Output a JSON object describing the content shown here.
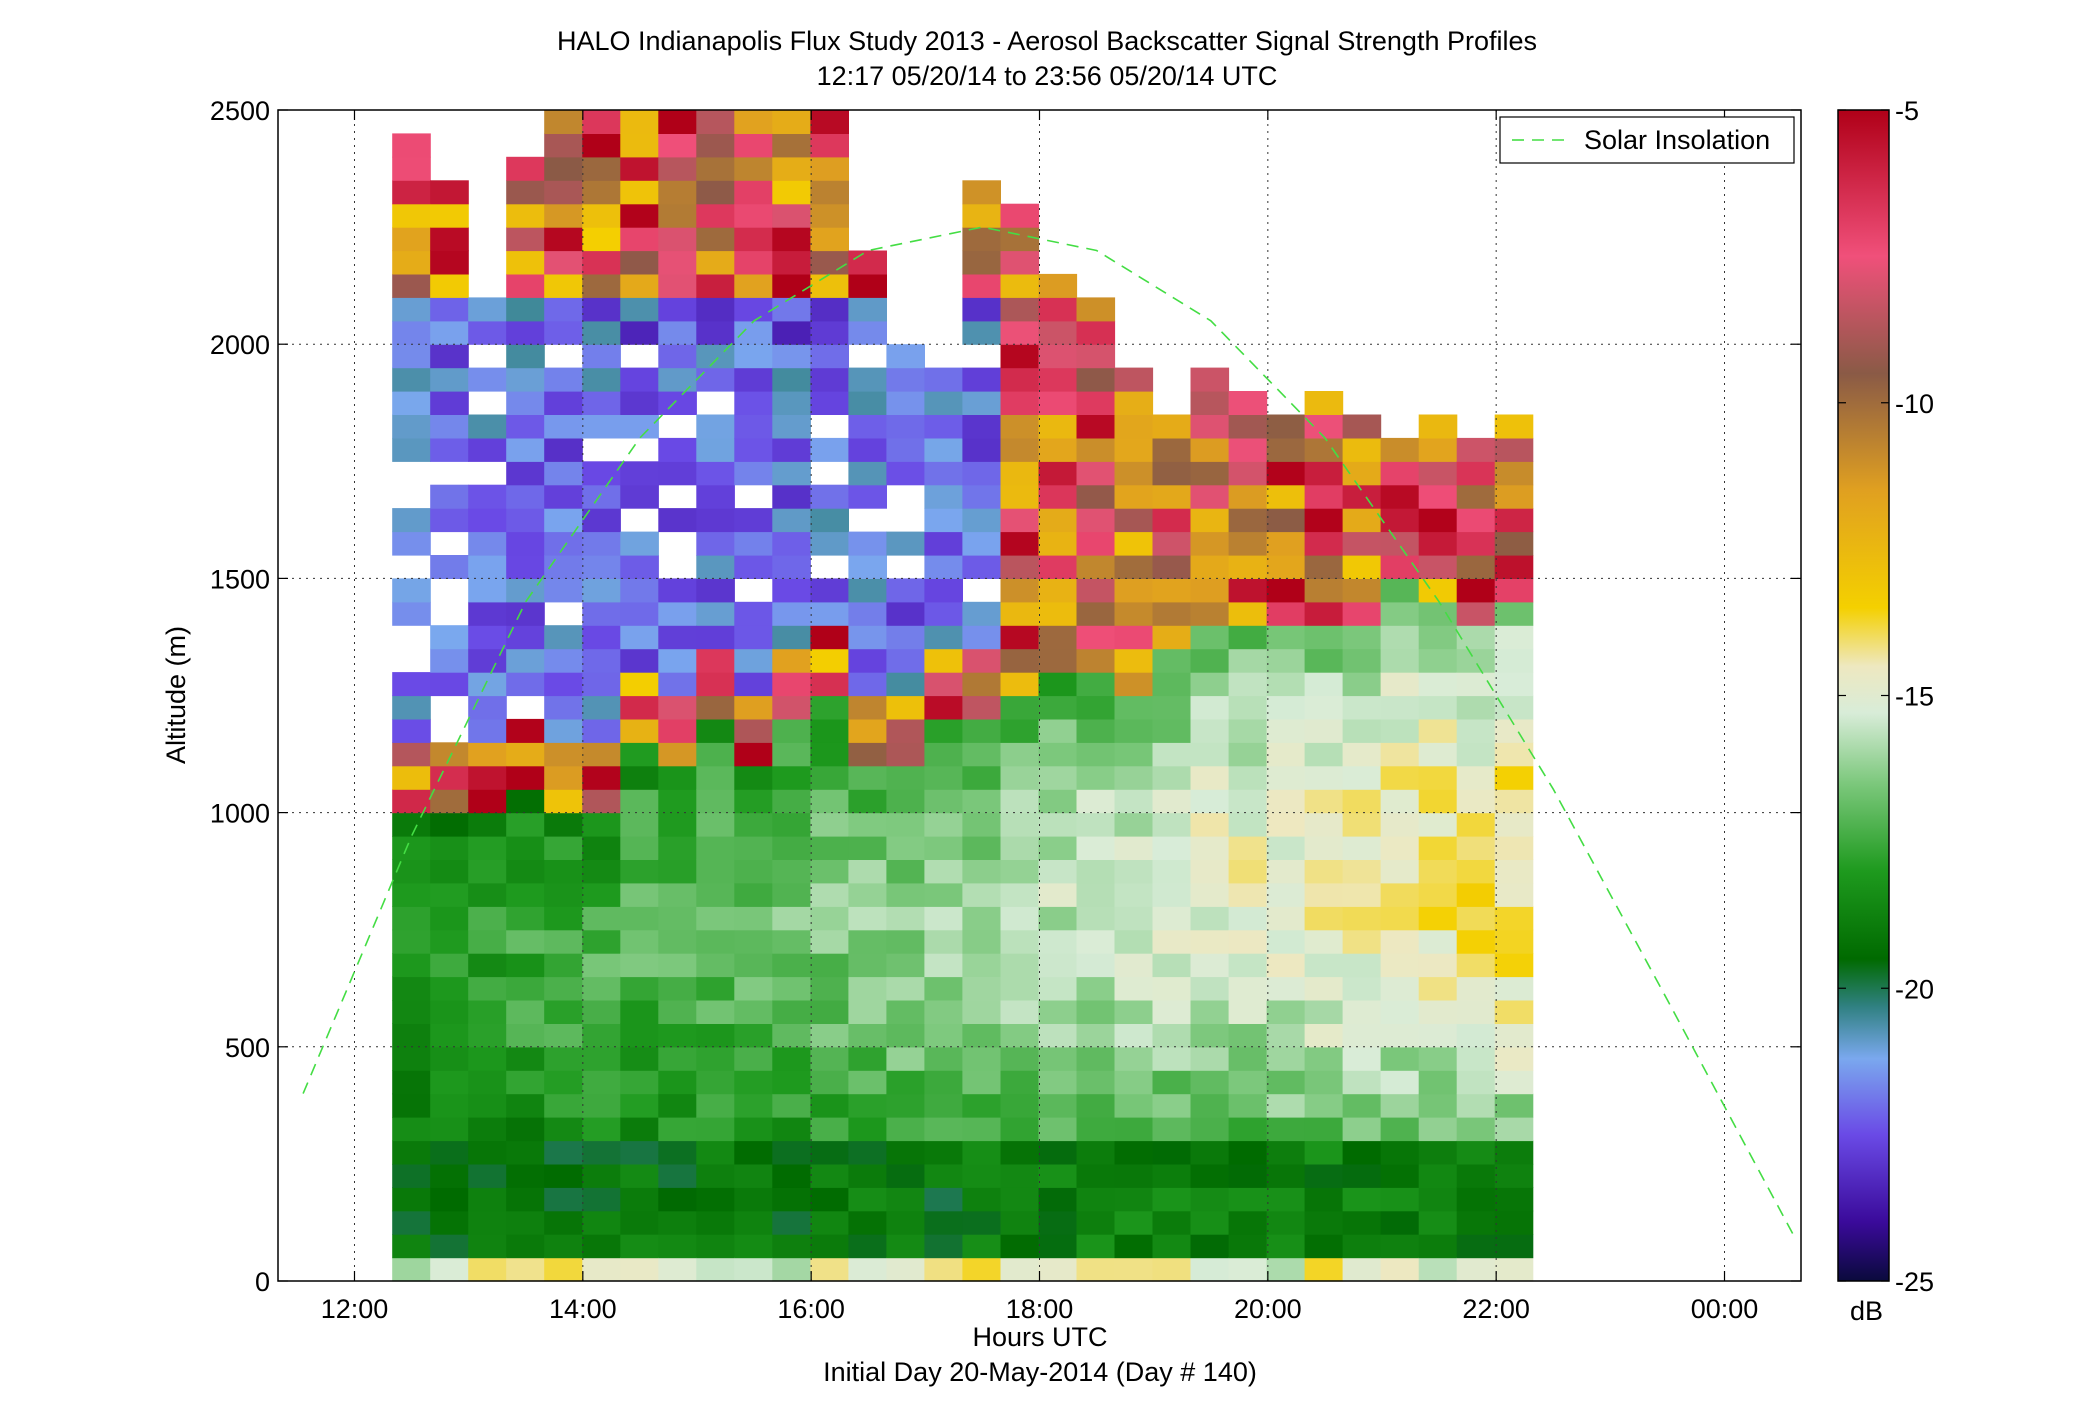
{
  "chart_data": {
    "type": "heatmap",
    "title": "HALO Indianapolis Flux Study 2013 - Aerosol Backscatter Signal Strength Profiles",
    "subtitle": "12:17 05/20/14 to 23:56 05/20/14  UTC",
    "xlabel": "Hours UTC",
    "xlabel2": "Initial Day 20-May-2014 (Day # 140)",
    "ylabel": "Altitude (m)",
    "x_ticks": [
      "12:00",
      "14:00",
      "16:00",
      "18:00",
      "20:00",
      "22:00",
      "00:00"
    ],
    "x_tick_values": [
      12,
      14,
      16,
      18,
      20,
      22,
      24
    ],
    "xlim": [
      11.33,
      24.67
    ],
    "y_ticks": [
      "0",
      "500",
      "1000",
      "1500",
      "2000",
      "2500"
    ],
    "y_tick_values": [
      0,
      500,
      1000,
      1500,
      2000,
      2500
    ],
    "ylim": [
      0,
      2500
    ],
    "grid": true,
    "legend": {
      "entries": [
        "Solar Insolation"
      ],
      "placement": "top-right"
    },
    "colorbar": {
      "label": "dB",
      "ticks": [
        "-5",
        "-10",
        "-15",
        "-20",
        "-25"
      ],
      "tick_values": [
        -5,
        -10,
        -15,
        -20,
        -25
      ],
      "range": [
        -25,
        -5
      ]
    },
    "series": [
      {
        "name": "Solar Insolation",
        "style": "dashed",
        "color": "#44dd44",
        "x": [
          11.55,
          12.5,
          13.5,
          14.5,
          15.5,
          16.5,
          17.5,
          18.5,
          19.5,
          20.5,
          21.5,
          22.5,
          23.5,
          24.6
        ],
        "y": [
          400,
          950,
          1450,
          1800,
          2050,
          2200,
          2250,
          2200,
          2050,
          1800,
          1450,
          1050,
          600,
          100
        ]
      }
    ],
    "heatmap": {
      "x_start": 12.33,
      "x_step": 0.333,
      "columns": 30,
      "y_step": 50,
      "rows": 50,
      "column_tops_m": [
        2450,
        2350,
        2100,
        2400,
        2500,
        2500,
        2500,
        2500,
        2500,
        2500,
        2500,
        2500,
        2200,
        2000,
        1950,
        2350,
        2300,
        2150,
        2100,
        1950,
        1850,
        1950,
        1900,
        1850,
        1900,
        1850,
        1800,
        1850,
        1800,
        1850
      ],
      "colormap": [
        {
          "db": -25,
          "color": "#0a0a3c"
        },
        {
          "db": -24,
          "color": "#3a0a9a"
        },
        {
          "db": -22.5,
          "color": "#6a4ae6"
        },
        {
          "db": -21.2,
          "color": "#7aa8ee"
        },
        {
          "db": -20.3,
          "color": "#2f8080"
        },
        {
          "db": -19.5,
          "color": "#006a00"
        },
        {
          "db": -18,
          "color": "#1e9a1e"
        },
        {
          "db": -16.5,
          "color": "#7cc87c"
        },
        {
          "db": -15.3,
          "color": "#d8ecd8"
        },
        {
          "db": -14.5,
          "color": "#eee8c0"
        },
        {
          "db": -13.5,
          "color": "#f4d000"
        },
        {
          "db": -11.5,
          "color": "#e0a020"
        },
        {
          "db": -9.5,
          "color": "#8a5a46"
        },
        {
          "db": -7.5,
          "color": "#f0507a"
        },
        {
          "db": -5,
          "color": "#b00018"
        }
      ]
    }
  }
}
